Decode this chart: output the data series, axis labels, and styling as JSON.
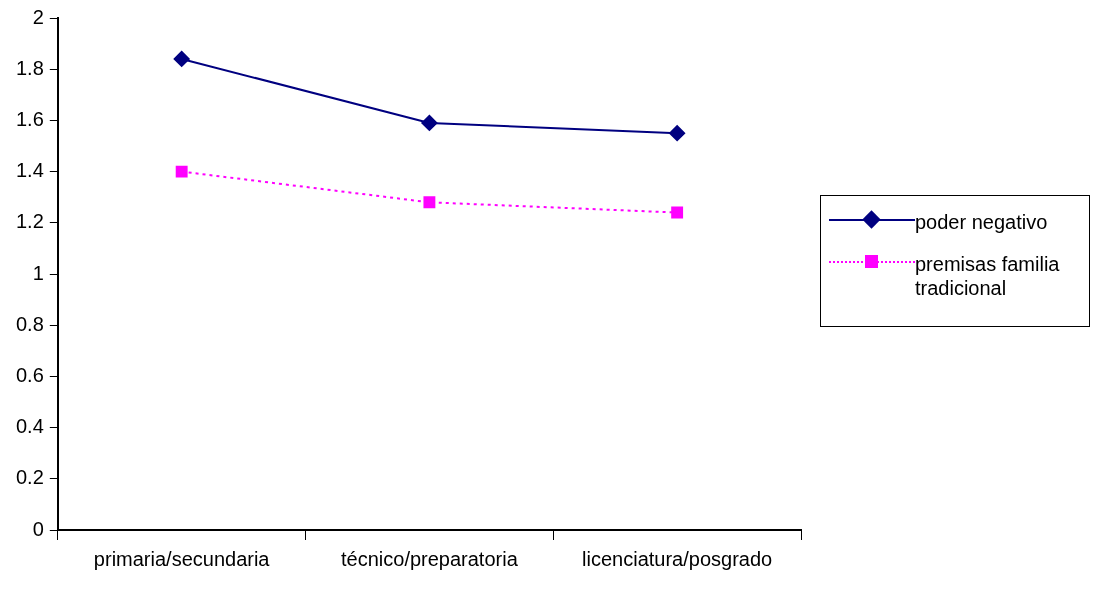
{
  "chart_data": {
    "type": "line",
    "categories": [
      "primaria/secundaria",
      "técnico/preparatoria",
      "licenciatura/posgrado"
    ],
    "series": [
      {
        "name": "poder negativo",
        "color": "#000080",
        "values": [
          1.84,
          1.59,
          1.55
        ],
        "marker": "diamond",
        "line_style": "solid"
      },
      {
        "name": "premisas familia tradicional",
        "color": "#ff00ff",
        "values": [
          1.4,
          1.28,
          1.24
        ],
        "marker": "square",
        "line_style": "dotted"
      }
    ],
    "ylim": [
      0,
      2
    ],
    "yticks": [
      0,
      0.2,
      0.4,
      0.6,
      0.8,
      1,
      1.2,
      1.4,
      1.6,
      1.8,
      2
    ],
    "grid": false,
    "legend": "right"
  }
}
